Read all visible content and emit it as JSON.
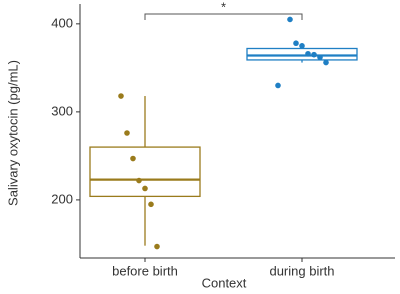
{
  "chart_data": {
    "type": "boxplot",
    "x_label": "Context",
    "y_label": "Salivary oxytocin (pg/mL)",
    "annotation": "*",
    "categories": [
      "before birth",
      "during birth"
    ],
    "series": [
      {
        "name": "before birth",
        "color": "#9a7b1c",
        "whisker_low": 148,
        "q1": 204,
        "median": 223,
        "q3": 260,
        "whisker_high": 318,
        "points": [
          318,
          276,
          247,
          222,
          213,
          195,
          147
        ]
      },
      {
        "name": "during birth",
        "color": "#1f7fc4",
        "whisker_low": 356,
        "q1": 359,
        "median": 364,
        "q3": 372,
        "whisker_high": 378,
        "points": [
          405,
          378,
          375,
          366,
          365,
          362,
          356,
          330
        ]
      }
    ],
    "ylim": [
      134,
      418
    ],
    "yticks": [
      200,
      300,
      400
    ]
  }
}
